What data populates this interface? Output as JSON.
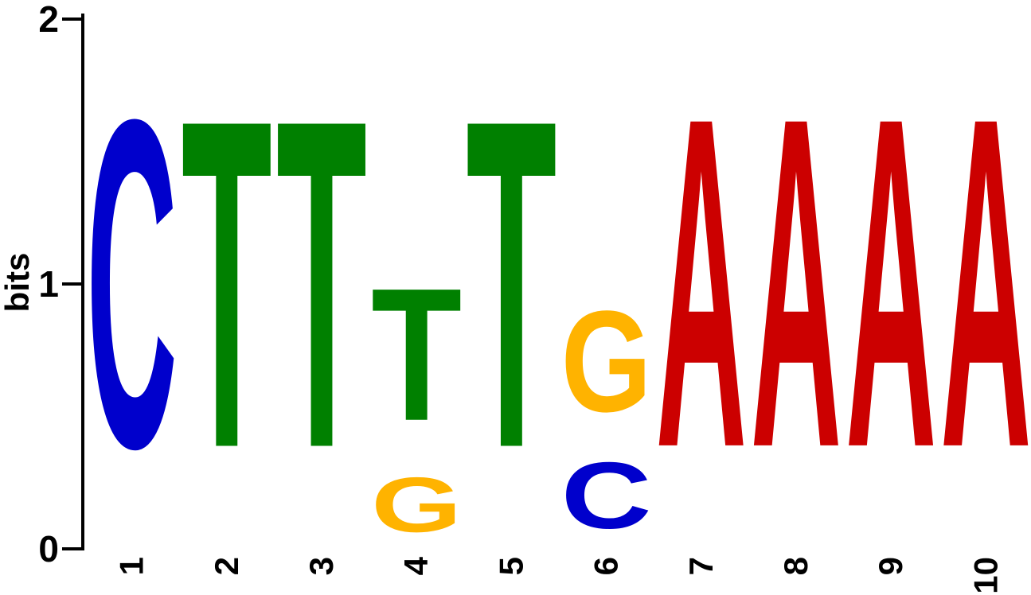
{
  "chart_data": {
    "type": "sequence_logo",
    "ylabel": "bits",
    "ylim": [
      0,
      2
    ],
    "yticks": [
      "0",
      "1",
      "2"
    ],
    "positions": [
      {
        "label": "1",
        "stack": [
          {
            "base": "C",
            "bits": 1.98
          }
        ]
      },
      {
        "label": "2",
        "stack": [
          {
            "base": "T",
            "bits": 1.98
          }
        ]
      },
      {
        "label": "3",
        "stack": [
          {
            "base": "T",
            "bits": 1.98
          }
        ]
      },
      {
        "label": "4",
        "stack": [
          {
            "base": "G",
            "bits": 0.33
          },
          {
            "base": "T",
            "bits": 0.8
          }
        ]
      },
      {
        "label": "5",
        "stack": [
          {
            "base": "T",
            "bits": 1.98
          }
        ]
      },
      {
        "label": "6",
        "stack": [
          {
            "base": "C",
            "bits": 0.4
          },
          {
            "base": "G",
            "bits": 0.61
          }
        ]
      },
      {
        "label": "7",
        "stack": [
          {
            "base": "A",
            "bits": 1.99
          }
        ]
      },
      {
        "label": "8",
        "stack": [
          {
            "base": "A",
            "bits": 1.99
          }
        ]
      },
      {
        "label": "9",
        "stack": [
          {
            "base": "A",
            "bits": 1.99
          }
        ]
      },
      {
        "label": "10",
        "stack": [
          {
            "base": "A",
            "bits": 1.99
          }
        ]
      }
    ],
    "colors": {
      "A": "#cc0000",
      "C": "#0000cc",
      "G": "#ffb300",
      "T": "#008000"
    }
  }
}
